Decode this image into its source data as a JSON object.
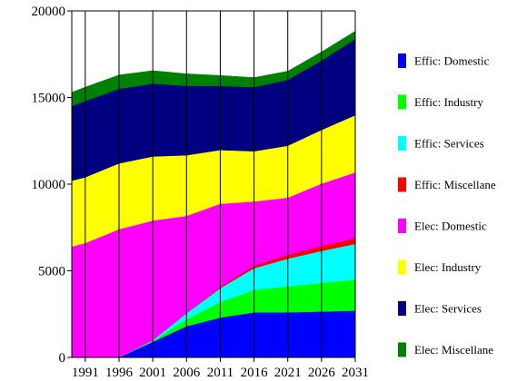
{
  "chart_data": {
    "type": "area",
    "stacked": true,
    "x": [
      1989,
      1991,
      1996,
      2001,
      2006,
      2011,
      2016,
      2021,
      2026,
      2031
    ],
    "x_tick_labels": [
      "1991",
      "1996",
      "2001",
      "2006",
      "2011",
      "2016",
      "2021",
      "2026",
      "2031"
    ],
    "y_ticks": [
      0,
      5000,
      10000,
      15000,
      20000
    ],
    "y_tick_labels": [
      "0",
      "5000",
      "10000",
      "15000",
      "20000"
    ],
    "ylim": [
      0,
      20000
    ],
    "grid": "vertical",
    "legend_position": "right",
    "series": [
      {
        "name": "Effic: Domestic",
        "color": "#0000ff",
        "values": [
          0,
          0,
          0,
          900,
          1800,
          2300,
          2600,
          2600,
          2650,
          2700
        ]
      },
      {
        "name": "Effic: Industry",
        "color": "#00ff00",
        "values": [
          0,
          0,
          0,
          50,
          400,
          900,
          1300,
          1500,
          1650,
          1800
        ]
      },
      {
        "name": "Effic: Services",
        "color": "#00ffff",
        "values": [
          0,
          0,
          0,
          50,
          350,
          800,
          1250,
          1600,
          1850,
          2050
        ]
      },
      {
        "name": "Effic: Miscellane",
        "color": "#ff0000",
        "values": [
          0,
          0,
          0,
          0,
          20,
          70,
          150,
          220,
          280,
          330
        ]
      },
      {
        "name": "Elec: Domestic",
        "color": "#ff00ff",
        "values": [
          6400,
          6600,
          7400,
          6900,
          5600,
          4800,
          3700,
          3300,
          3600,
          3800
        ]
      },
      {
        "name": "Elec: Industry",
        "color": "#ffff00",
        "values": [
          3800,
          3800,
          3800,
          3700,
          3500,
          3100,
          2900,
          3000,
          3100,
          3300
        ]
      },
      {
        "name": "Elec: Services",
        "color": "#000080",
        "values": [
          4300,
          4400,
          4300,
          4200,
          4000,
          3700,
          3700,
          3800,
          4000,
          4400
        ]
      },
      {
        "name": "Elec: Miscellane",
        "color": "#008000",
        "values": [
          800,
          800,
          800,
          750,
          700,
          600,
          550,
          500,
          500,
          450
        ]
      }
    ]
  }
}
